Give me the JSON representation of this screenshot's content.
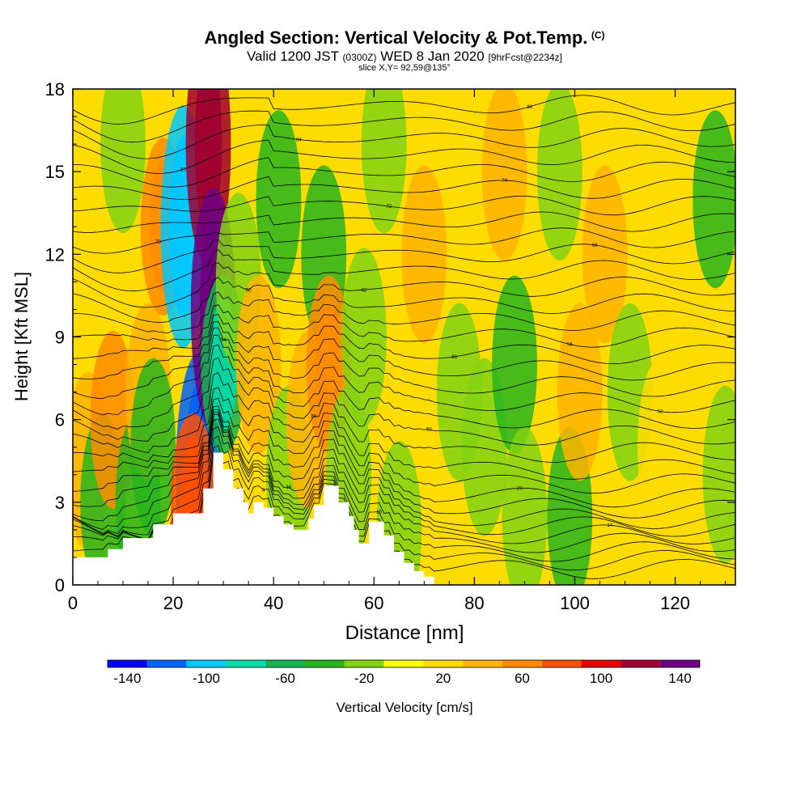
{
  "title": {
    "main": "Angled Section: Vertical Velocity & Pot.Temp.",
    "mark": "(C)",
    "line2_a": "Valid 1200 JST",
    "line2_b": "(0300Z)",
    "line2_c": "WED 8 Jan 2020",
    "line2_d": "[9hrFcst@2234z]",
    "slice": "slice X,Y= 92,59@135°"
  },
  "chart_data": {
    "type": "heatmap",
    "xlabel": "Distance [nm]",
    "ylabel": "Height [Kft MSL]",
    "xlim": [
      0,
      132
    ],
    "ylim": [
      0,
      18
    ],
    "x_ticks": [
      "0",
      "20",
      "40",
      "60",
      "80",
      "100",
      "120"
    ],
    "y_ticks": [
      "0",
      "3",
      "6",
      "9",
      "12",
      "15",
      "18"
    ],
    "colorbar": {
      "label": "Vertical Velocity [cm/s]",
      "tick_labels": [
        "-140",
        "-100",
        "-60",
        "-20",
        "20",
        "60",
        "100",
        "140"
      ],
      "bounds": [
        -150,
        150
      ],
      "step": 20,
      "colors": [
        "#0000ff",
        "#0064ff",
        "#00c8ff",
        "#00dcaa",
        "#14b450",
        "#28b41e",
        "#82d214",
        "#ffff00",
        "#ffdc00",
        "#ffb400",
        "#ff8c00",
        "#ff5000",
        "#e60000",
        "#a00032",
        "#6e0082"
      ]
    },
    "fields": [
      {
        "x": 3,
        "y": 4.5,
        "value": 40
      },
      {
        "x": 6,
        "y": 3,
        "value": -40
      },
      {
        "x": 8,
        "y": 6,
        "value": 50
      },
      {
        "x": 10,
        "y": 16,
        "value": -30
      },
      {
        "x": 13,
        "y": 3,
        "value": -50
      },
      {
        "x": 15,
        "y": 7,
        "value": 40
      },
      {
        "x": 16,
        "y": 5,
        "value": -40
      },
      {
        "x": 18,
        "y": 13,
        "value": 60
      },
      {
        "x": 22,
        "y": 13,
        "value": -100
      },
      {
        "x": 25,
        "y": 4,
        "value": -120
      },
      {
        "x": 24,
        "y": 3,
        "value": 80
      },
      {
        "x": 27,
        "y": 16,
        "value": 110
      },
      {
        "x": 28,
        "y": 10,
        "value": 140
      },
      {
        "x": 30,
        "y": 8,
        "value": -70
      },
      {
        "x": 33,
        "y": 11,
        "value": -30
      },
      {
        "x": 37,
        "y": 8,
        "value": 40
      },
      {
        "x": 41,
        "y": 14,
        "value": -35
      },
      {
        "x": 43,
        "y": 4,
        "value": -30
      },
      {
        "x": 47,
        "y": 6,
        "value": 30
      },
      {
        "x": 50,
        "y": 12,
        "value": -40
      },
      {
        "x": 51,
        "y": 8,
        "value": 60
      },
      {
        "x": 55,
        "y": 4,
        "value": -30
      },
      {
        "x": 58,
        "y": 9,
        "value": -25
      },
      {
        "x": 62,
        "y": 16,
        "value": -25
      },
      {
        "x": 65,
        "y": 2,
        "value": -20
      },
      {
        "x": 70,
        "y": 12,
        "value": 30
      },
      {
        "x": 77,
        "y": 7,
        "value": -25
      },
      {
        "x": 82,
        "y": 5,
        "value": -30
      },
      {
        "x": 86,
        "y": 15,
        "value": 35
      },
      {
        "x": 88,
        "y": 8,
        "value": -35
      },
      {
        "x": 90,
        "y": 2.5,
        "value": -20
      },
      {
        "x": 97,
        "y": 15,
        "value": -20
      },
      {
        "x": 99,
        "y": 2.5,
        "value": -50
      },
      {
        "x": 101,
        "y": 7,
        "value": 45
      },
      {
        "x": 106,
        "y": 12,
        "value": 30
      },
      {
        "x": 111,
        "y": 7,
        "value": -30
      },
      {
        "x": 117,
        "y": 5,
        "value": 25
      },
      {
        "x": 124,
        "y": 14,
        "value": 25
      },
      {
        "x": 128,
        "y": 14,
        "value": -45
      },
      {
        "x": 130,
        "y": 4,
        "value": -20
      }
    ],
    "terrain": [
      [
        0,
        1
      ],
      [
        7,
        1
      ],
      [
        7,
        1.3
      ],
      [
        10,
        1.3
      ],
      [
        10,
        1.7
      ],
      [
        16,
        1.7
      ],
      [
        16,
        2.2
      ],
      [
        20,
        2.2
      ],
      [
        20,
        2.6
      ],
      [
        26,
        2.6
      ],
      [
        26,
        3.5
      ],
      [
        28,
        3.5
      ],
      [
        28,
        4.8
      ],
      [
        30,
        4.8
      ],
      [
        30,
        4.2
      ],
      [
        32,
        4.2
      ],
      [
        32,
        3.5
      ],
      [
        34,
        3.5
      ],
      [
        34,
        3.0
      ],
      [
        35,
        3.0
      ],
      [
        35,
        2.6
      ],
      [
        36,
        2.6
      ],
      [
        36,
        3.0
      ],
      [
        38,
        3.0
      ],
      [
        38,
        2.8
      ],
      [
        40,
        2.8
      ],
      [
        40,
        2.5
      ],
      [
        42,
        2.5
      ],
      [
        42,
        2.2
      ],
      [
        44,
        2.2
      ],
      [
        44,
        2.0
      ],
      [
        47,
        2.0
      ],
      [
        47,
        2.4
      ],
      [
        48,
        2.4
      ],
      [
        48,
        2.9
      ],
      [
        50,
        2.9
      ],
      [
        50,
        3.6
      ],
      [
        53,
        3.6
      ],
      [
        53,
        3.0
      ],
      [
        55,
        3.0
      ],
      [
        55,
        2.5
      ],
      [
        56,
        2.5
      ],
      [
        56,
        2.0
      ],
      [
        57,
        2.0
      ],
      [
        57,
        1.5
      ],
      [
        59,
        1.5
      ],
      [
        59,
        2.3
      ],
      [
        62,
        2.3
      ],
      [
        62,
        1.8
      ],
      [
        64,
        1.8
      ],
      [
        64,
        1.2
      ],
      [
        66,
        1.2
      ],
      [
        66,
        0.8
      ],
      [
        68,
        0.8
      ],
      [
        68,
        0.5
      ],
      [
        70,
        0.5
      ],
      [
        70,
        0.3
      ],
      [
        72,
        0.3
      ],
      [
        72,
        0
      ]
    ],
    "isentropes": [
      {
        "base": 0.6,
        "label": "6"
      },
      {
        "base": 0.9,
        "label": "8"
      },
      {
        "base": 1.2,
        "label": "10"
      },
      {
        "base": 1.5,
        "label": ""
      },
      {
        "base": 1.8,
        "label": "14"
      },
      {
        "base": 2.1,
        "label": ""
      },
      {
        "base": 2.4,
        "label": "18"
      },
      {
        "base": 2.8,
        "label": ""
      },
      {
        "base": 3.2,
        "label": "20"
      },
      {
        "base": 3.7,
        "label": ""
      },
      {
        "base": 4.2,
        "label": ""
      },
      {
        "base": 4.8,
        "label": "50"
      },
      {
        "base": 5.4,
        "label": "52"
      },
      {
        "base": 6.0,
        "label": ""
      },
      {
        "base": 6.6,
        "label": "52"
      },
      {
        "base": 7.2,
        "label": "54"
      },
      {
        "base": 7.8,
        "label": ""
      },
      {
        "base": 8.4,
        "label": "58"
      },
      {
        "base": 9.0,
        "label": "56"
      },
      {
        "base": 9.6,
        "label": ""
      },
      {
        "base": 10.2,
        "label": "60"
      },
      {
        "base": 10.8,
        "label": "62"
      },
      {
        "base": 11.4,
        "label": ""
      },
      {
        "base": 12.0,
        "label": "68"
      },
      {
        "base": 12.6,
        "label": "70"
      },
      {
        "base": 13.2,
        "label": ""
      },
      {
        "base": 13.8,
        "label": "72"
      },
      {
        "base": 14.4,
        "label": "74"
      },
      {
        "base": 15.0,
        "label": ""
      },
      {
        "base": 15.6,
        "label": "80"
      },
      {
        "base": 16.2,
        "label": "84"
      },
      {
        "base": 16.8,
        "label": ""
      },
      {
        "base": 17.4,
        "label": "86"
      }
    ]
  }
}
